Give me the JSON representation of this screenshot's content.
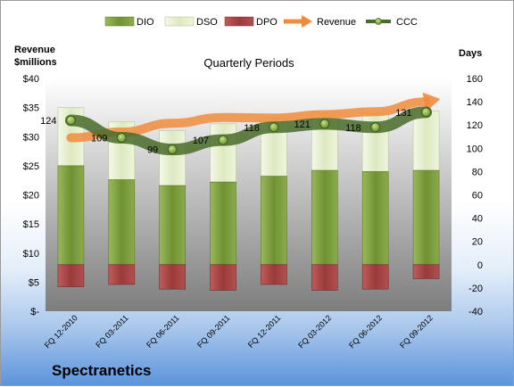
{
  "company": "Spectranetics",
  "chart_data": {
    "type": "bar",
    "subtitle": "Quarterly Periods",
    "left_axis_label": [
      "Revenue",
      "$millions"
    ],
    "right_axis_label": "Days",
    "categories": [
      "FQ 12-2010",
      "FQ 03-2011",
      "FQ 06-2011",
      "FQ 09-2011",
      "FQ 12-2011",
      "FQ 03-2012",
      "FQ 06-2012",
      "FQ 09-2012"
    ],
    "left_ticks": [
      "$-",
      "$5",
      "$10",
      "$15",
      "$20",
      "$25",
      "$30",
      "$35",
      "$40"
    ],
    "left_ylim": [
      0,
      40
    ],
    "right_ticks": [
      "-40",
      "-20",
      "0",
      "20",
      "40",
      "60",
      "80",
      "100",
      "120",
      "140",
      "160"
    ],
    "right_ylim": [
      -40,
      160
    ],
    "legend_position": "top",
    "series": [
      {
        "name": "DIO",
        "axis": "right",
        "kind": "stacked-bar",
        "color": "#7a9d3c",
        "values": [
          85,
          73,
          68,
          71,
          76,
          81,
          80,
          81
        ]
      },
      {
        "name": "DSO",
        "axis": "right",
        "kind": "stacked-bar",
        "color": "#e9f2d3",
        "values": [
          50,
          50,
          47,
          50,
          50,
          50,
          50,
          51
        ]
      },
      {
        "name": "DPO",
        "axis": "right",
        "kind": "bar-negative",
        "color": "#a84646",
        "values": [
          -19,
          -17,
          -21,
          -22,
          -17,
          -22,
          -21,
          -12
        ]
      },
      {
        "name": "Revenue",
        "axis": "left",
        "kind": "line-arrow",
        "color": "#f08c3c",
        "values": [
          29.8,
          30.8,
          32.3,
          33.3,
          33.2,
          33.8,
          34.3,
          36.0
        ]
      },
      {
        "name": "CCC",
        "axis": "right",
        "kind": "line-markers",
        "color": "#4a6b2a",
        "values": [
          124,
          109,
          99,
          107,
          118,
          121,
          118,
          131
        ]
      }
    ],
    "ccc_labels": [
      "124",
      "109",
      "99",
      "107",
      "118",
      "121",
      "118",
      "131"
    ]
  }
}
